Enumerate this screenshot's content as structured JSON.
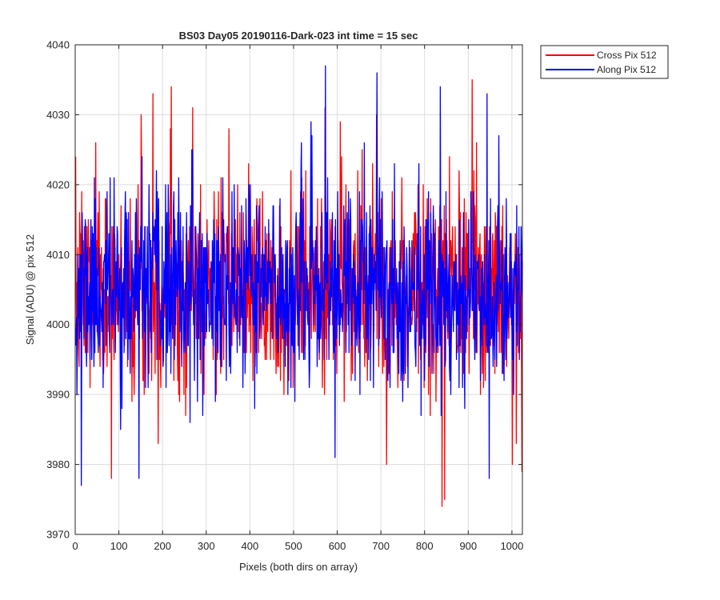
{
  "chart_data": {
    "type": "line",
    "title": "BS03 Day05 20190116-Dark-023 int time = 15 sec",
    "xlabel": "Pixels (both dirs on array)",
    "ylabel": "Signal (ADU) @ pix 512",
    "xlim": [
      0,
      1024
    ],
    "ylim": [
      3970,
      4040
    ],
    "xticks": [
      "0",
      "100",
      "200",
      "300",
      "400",
      "500",
      "600",
      "700",
      "800",
      "900",
      "1000"
    ],
    "yticks": [
      "3970",
      "3980",
      "3990",
      "4000",
      "4010",
      "4020",
      "4030",
      "4040"
    ],
    "grid": true,
    "legend_position": "outside-top-right",
    "series": [
      {
        "name": "Cross Pix 512",
        "color": "#ff0000",
        "noise": {
          "count": 1024,
          "mean": 4005,
          "sd": 7,
          "min": 3974,
          "max": 4034,
          "seed": 7
        },
        "spikes": [
          {
            "x": 82,
            "y": 3978
          },
          {
            "x": 150,
            "y": 4030
          },
          {
            "x": 177,
            "y": 4033
          },
          {
            "x": 219,
            "y": 4034
          },
          {
            "x": 268,
            "y": 4031
          },
          {
            "x": 571,
            "y": 4031
          },
          {
            "x": 606,
            "y": 4029
          },
          {
            "x": 689,
            "y": 4030
          },
          {
            "x": 839,
            "y": 3974
          },
          {
            "x": 845,
            "y": 3975
          },
          {
            "x": 908,
            "y": 4035
          },
          {
            "x": 1000,
            "y": 3980
          },
          {
            "x": 1022,
            "y": 3979
          }
        ]
      },
      {
        "name": "Along Pix 512",
        "color": "#0000ff",
        "noise": {
          "count": 1024,
          "mean": 4005,
          "sd": 7,
          "min": 3977,
          "max": 4037,
          "seed": 11
        },
        "spikes": [
          {
            "x": 13,
            "y": 3977
          },
          {
            "x": 145,
            "y": 3978
          },
          {
            "x": 572,
            "y": 4037
          },
          {
            "x": 690,
            "y": 4036
          },
          {
            "x": 835,
            "y": 4034
          },
          {
            "x": 942,
            "y": 4033
          },
          {
            "x": 947,
            "y": 3978
          }
        ]
      }
    ]
  }
}
